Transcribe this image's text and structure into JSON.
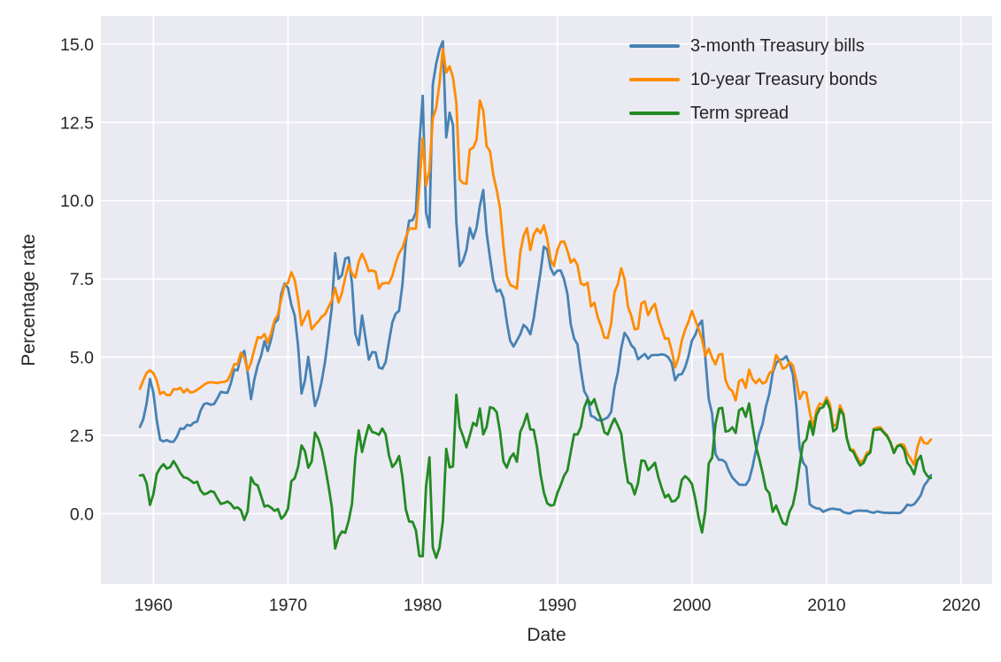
{
  "figure": {
    "background_color": "#ffffff",
    "plot_background_color": "#eaeaf2",
    "grid_color": "#ffffff",
    "tick_label_color": "#262626"
  },
  "chart_data": {
    "type": "line",
    "title": "",
    "x_label": "Date",
    "y_label": "Percentage rate",
    "grid": true,
    "legend_position": "upper right",
    "xlim": [
      1956.1,
      2022.3
    ],
    "ylim": [
      -2.25,
      15.9
    ],
    "x_ticks": [
      1960,
      1970,
      1980,
      1990,
      2000,
      2010,
      2020
    ],
    "x_tick_labels": [
      "1960",
      "1970",
      "1980",
      "1990",
      "2000",
      "2010",
      "2020"
    ],
    "y_ticks": [
      0.0,
      2.5,
      5.0,
      7.5,
      10.0,
      12.5,
      15.0
    ],
    "y_tick_labels": [
      "0.0",
      "2.5",
      "5.0",
      "7.5",
      "10.0",
      "12.5",
      "15.0"
    ],
    "x_unit": "decimal year, quarterly frequency",
    "x_start": 1959.0,
    "x_step": 0.25,
    "series": [
      {
        "name": "3-month Treasury bills",
        "color": "#4682B4",
        "values": [
          2.77,
          3.02,
          3.53,
          4.3,
          3.87,
          2.99,
          2.36,
          2.31,
          2.35,
          2.3,
          2.3,
          2.46,
          2.72,
          2.71,
          2.84,
          2.81,
          2.91,
          2.94,
          3.29,
          3.5,
          3.53,
          3.48,
          3.5,
          3.68,
          3.89,
          3.87,
          3.86,
          4.16,
          4.6,
          4.58,
          5.03,
          5.2,
          4.51,
          3.66,
          4.29,
          4.74,
          5.04,
          5.51,
          5.2,
          5.58,
          6.09,
          6.2,
          7.02,
          7.35,
          7.21,
          6.67,
          6.33,
          5.36,
          3.84,
          4.25,
          5.01,
          4.23,
          3.44,
          3.75,
          4.24,
          4.86,
          5.7,
          6.6,
          8.32,
          7.5,
          7.62,
          8.15,
          8.19,
          7.36,
          5.75,
          5.39,
          6.33,
          5.63,
          4.92,
          5.16,
          5.15,
          4.67,
          4.63,
          4.84,
          5.5,
          6.11,
          6.39,
          6.48,
          7.32,
          8.68,
          9.36,
          9.37,
          9.63,
          11.8,
          13.35,
          9.62,
          9.15,
          13.71,
          14.37,
          14.83,
          15.09,
          12.02,
          12.81,
          12.42,
          9.32,
          7.91,
          8.08,
          8.42,
          9.13,
          8.79,
          9.13,
          9.84,
          10.34,
          8.97,
          8.18,
          7.44,
          7.1,
          7.15,
          6.89,
          6.13,
          5.53,
          5.34,
          5.53,
          5.73,
          6.03,
          5.93,
          5.73,
          6.23,
          7.0,
          7.7,
          8.53,
          8.44,
          7.85,
          7.63,
          7.76,
          7.77,
          7.49,
          7.02,
          6.05,
          5.59,
          5.41,
          4.58,
          3.91,
          3.72,
          3.13,
          3.08,
          2.99,
          2.98,
          3.02,
          3.08,
          3.25,
          4.04,
          4.51,
          5.28,
          5.78,
          5.62,
          5.38,
          5.27,
          4.93,
          5.02,
          5.1,
          4.95,
          5.06,
          5.07,
          5.07,
          5.09,
          5.07,
          4.99,
          4.81,
          4.26,
          4.44,
          4.46,
          4.68,
          5.04,
          5.53,
          5.71,
          6.02,
          6.17,
          4.95,
          3.66,
          3.19,
          1.91,
          1.72,
          1.72,
          1.64,
          1.36,
          1.16,
          1.04,
          0.93,
          0.92,
          0.92,
          1.08,
          1.49,
          2.01,
          2.54,
          2.86,
          3.42,
          3.84,
          4.51,
          4.81,
          4.92,
          4.93,
          5.03,
          4.79,
          4.45,
          3.45,
          2.09,
          1.64,
          1.49,
          0.3,
          0.22,
          0.17,
          0.16,
          0.06,
          0.11,
          0.15,
          0.16,
          0.14,
          0.13,
          0.05,
          0.02,
          0.01,
          0.07,
          0.09,
          0.1,
          0.09,
          0.09,
          0.05,
          0.03,
          0.07,
          0.05,
          0.03,
          0.03,
          0.02,
          0.03,
          0.02,
          0.03,
          0.14,
          0.29,
          0.26,
          0.3,
          0.43,
          0.59,
          0.9,
          1.04,
          1.23
        ]
      },
      {
        "name": "10-year Treasury bonds",
        "color": "#FF8C00",
        "values": [
          3.99,
          4.26,
          4.5,
          4.58,
          4.49,
          4.26,
          3.82,
          3.89,
          3.79,
          3.79,
          3.98,
          3.97,
          4.02,
          3.87,
          3.98,
          3.87,
          3.89,
          3.96,
          4.03,
          4.12,
          4.18,
          4.2,
          4.19,
          4.17,
          4.2,
          4.21,
          4.25,
          4.47,
          4.77,
          4.78,
          5.14,
          5.0,
          4.58,
          4.82,
          5.25,
          5.64,
          5.61,
          5.74,
          5.46,
          5.77,
          6.18,
          6.35,
          6.86,
          7.3,
          7.37,
          7.71,
          7.46,
          6.85,
          6.02,
          6.25,
          6.48,
          5.89,
          6.03,
          6.14,
          6.29,
          6.37,
          6.6,
          6.81,
          7.21,
          6.75,
          7.05,
          7.54,
          7.96,
          7.67,
          7.54,
          8.05,
          8.3,
          8.06,
          7.75,
          7.77,
          7.73,
          7.19,
          7.35,
          7.37,
          7.36,
          7.6,
          8.01,
          8.32,
          8.49,
          8.82,
          9.11,
          9.11,
          9.1,
          10.45,
          11.99,
          10.48,
          10.95,
          12.63,
          12.96,
          13.75,
          14.85,
          14.09,
          14.29,
          13.93,
          13.12,
          10.67,
          10.56,
          10.54,
          11.63,
          11.69,
          11.94,
          13.2,
          12.87,
          11.74,
          11.58,
          10.81,
          10.34,
          9.76,
          8.56,
          7.6,
          7.31,
          7.26,
          7.19,
          8.34,
          8.88,
          9.12,
          8.42,
          8.91,
          9.1,
          8.96,
          9.21,
          8.77,
          8.11,
          7.91,
          8.42,
          8.68,
          8.7,
          8.4,
          8.02,
          8.13,
          7.94,
          7.35,
          7.3,
          7.38,
          6.62,
          6.74,
          6.28,
          5.99,
          5.62,
          5.61,
          6.07,
          7.08,
          7.33,
          7.84,
          7.48,
          6.62,
          6.32,
          5.89,
          5.91,
          6.72,
          6.78,
          6.34,
          6.56,
          6.7,
          6.24,
          5.91,
          5.59,
          5.6,
          5.2,
          4.67,
          4.98,
          5.54,
          5.88,
          6.14,
          6.48,
          6.18,
          5.89,
          5.57,
          5.05,
          5.27,
          4.98,
          4.77,
          5.08,
          5.1,
          4.26,
          4.01,
          3.92,
          3.62,
          4.23,
          4.29,
          4.02,
          4.6,
          4.3,
          4.17,
          4.3,
          4.16,
          4.21,
          4.49,
          4.57,
          5.07,
          4.9,
          4.63,
          4.68,
          4.85,
          4.73,
          4.26,
          3.66,
          3.89,
          3.86,
          3.25,
          2.74,
          3.31,
          3.52,
          3.46,
          3.72,
          3.49,
          2.79,
          2.86,
          3.46,
          3.21,
          2.43,
          2.05,
          2.04,
          1.82,
          1.64,
          1.71,
          1.95,
          2.0,
          2.71,
          2.75,
          2.76,
          2.62,
          2.5,
          2.28,
          1.97,
          2.17,
          2.22,
          2.19,
          1.92,
          1.75,
          1.56,
          2.13,
          2.44,
          2.26,
          2.24,
          2.37
        ]
      },
      {
        "name": "Term spread",
        "color": "#228B22",
        "values": [
          1.22,
          1.24,
          0.97,
          0.28,
          0.62,
          1.27,
          1.46,
          1.58,
          1.44,
          1.49,
          1.68,
          1.51,
          1.3,
          1.16,
          1.14,
          1.06,
          0.98,
          1.02,
          0.74,
          0.62,
          0.65,
          0.72,
          0.69,
          0.49,
          0.31,
          0.34,
          0.39,
          0.31,
          0.17,
          0.2,
          0.11,
          -0.2,
          0.07,
          1.16,
          0.96,
          0.9,
          0.57,
          0.23,
          0.26,
          0.19,
          0.09,
          0.15,
          -0.16,
          -0.05,
          0.16,
          1.04,
          1.13,
          1.49,
          2.18,
          2.0,
          1.47,
          1.66,
          2.59,
          2.39,
          2.05,
          1.51,
          0.9,
          0.21,
          -1.11,
          -0.75,
          -0.57,
          -0.61,
          -0.23,
          0.31,
          1.79,
          2.66,
          1.97,
          2.43,
          2.83,
          2.61,
          2.58,
          2.52,
          2.72,
          2.53,
          1.86,
          1.49,
          1.62,
          1.84,
          1.17,
          0.14,
          -0.25,
          -0.26,
          -0.53,
          -1.35,
          -1.36,
          0.86,
          1.8,
          -1.08,
          -1.41,
          -1.08,
          -0.24,
          2.07,
          1.48,
          1.51,
          3.8,
          2.76,
          2.48,
          2.12,
          2.5,
          2.9,
          2.81,
          3.36,
          2.53,
          2.77,
          3.4,
          3.37,
          3.24,
          2.61,
          1.67,
          1.47,
          1.78,
          1.92,
          1.66,
          2.61,
          2.85,
          3.19,
          2.69,
          2.68,
          2.1,
          1.26,
          0.68,
          0.33,
          0.26,
          0.28,
          0.66,
          0.91,
          1.21,
          1.38,
          1.97,
          2.54,
          2.53,
          2.77,
          3.39,
          3.66,
          3.49,
          3.66,
          3.29,
          3.01,
          2.6,
          2.53,
          2.82,
          3.04,
          2.82,
          2.56,
          1.7,
          1.0,
          0.94,
          0.62,
          0.98,
          1.7,
          1.68,
          1.39,
          1.5,
          1.63,
          1.17,
          0.82,
          0.52,
          0.61,
          0.39,
          0.41,
          0.54,
          1.08,
          1.2,
          1.1,
          0.95,
          0.47,
          -0.13,
          -0.6,
          0.1,
          1.61,
          1.79,
          2.86,
          3.36,
          3.38,
          2.62,
          2.65,
          2.76,
          2.58,
          3.3,
          3.37,
          3.1,
          3.52,
          2.81,
          2.16,
          1.76,
          1.3,
          0.79,
          0.65,
          0.06,
          0.26,
          -0.02,
          -0.3,
          -0.35,
          0.06,
          0.28,
          0.81,
          1.57,
          2.25,
          2.37,
          2.95,
          2.52,
          3.14,
          3.36,
          3.4,
          3.61,
          3.34,
          2.63,
          2.72,
          3.33,
          3.16,
          2.41,
          2.04,
          1.97,
          1.73,
          1.54,
          1.62,
          1.86,
          1.95,
          2.68,
          2.68,
          2.71,
          2.59,
          2.47,
          2.26,
          1.94,
          2.15,
          2.19,
          2.05,
          1.63,
          1.49,
          1.26,
          1.7,
          1.85,
          1.36,
          1.2,
          1.14
        ]
      }
    ]
  }
}
